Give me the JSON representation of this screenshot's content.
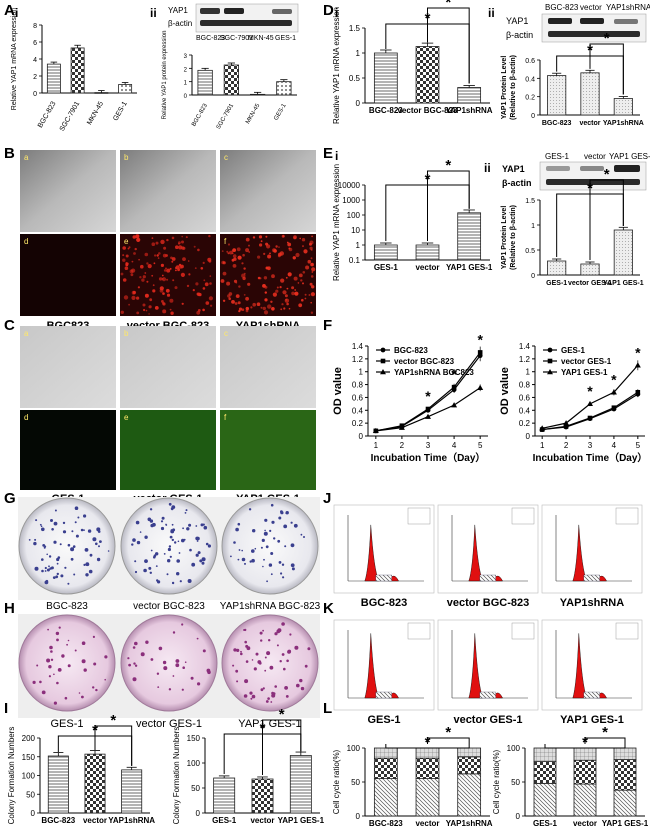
{
  "figure": {
    "panel_labels": [
      "A",
      "B",
      "C",
      "D",
      "E",
      "F",
      "G",
      "H",
      "I",
      "J",
      "K",
      "L"
    ],
    "sub_labels": {
      "i": "i",
      "ii": "ii"
    },
    "significance_mark": "*"
  },
  "western_blots": {
    "A_ii": {
      "bands": [
        "YAP1",
        "β-actin"
      ],
      "lanes": [
        "BGC-823",
        "SGC-7901",
        "MKN-45",
        "GES-1"
      ]
    },
    "D_ii": {
      "bands": [
        "YAP1",
        "β-actin"
      ],
      "lanes": [
        "BGC-823",
        "vector",
        "YAP1shRNA"
      ]
    },
    "E_ii": {
      "bands": [
        "YAP1",
        "β-actin"
      ],
      "lanes": [
        "GES-1",
        "vector",
        "YAP1 GES-1"
      ]
    }
  },
  "photo_panels": {
    "B": {
      "tiles": [
        "a",
        "b",
        "c",
        "d",
        "e",
        "f"
      ],
      "captions": [
        "BGC823",
        "vector BGC-823",
        "YAP1shRNA"
      ]
    },
    "C": {
      "tiles": [
        "a",
        "b",
        "c",
        "d",
        "e",
        "f"
      ],
      "captions": [
        "GES-1",
        "vector GES-1",
        "YAP1 GES-1"
      ]
    },
    "G": {
      "captions": [
        "BGC-823",
        "vector BGC-823",
        "YAP1shRNA BGC-823"
      ]
    },
    "H": {
      "captions": [
        "GES-1",
        "vector GES-1",
        "YAP1 GES-1"
      ]
    },
    "J": {
      "captions": [
        "BGC-823",
        "vector BGC-823",
        "YAP1shRNA"
      ]
    },
    "K": {
      "captions": [
        "GES-1",
        "vector GES-1",
        "YAP1 GES-1"
      ]
    }
  },
  "chart_data": [
    {
      "id": "A_i",
      "type": "bar",
      "categories": [
        "BGC-823",
        "SGC-7901",
        "MKN-45",
        "GES-1"
      ],
      "values": [
        3.4,
        5.3,
        0.05,
        1.0
      ],
      "ylabel": "Relative YAP1 mRNA expression",
      "ylim": [
        0,
        8
      ],
      "yticks": [
        0,
        2,
        4,
        6,
        8
      ]
    },
    {
      "id": "A_ii",
      "type": "bar",
      "categories": [
        "BGC-823",
        "SGC-7901",
        "MKN-45",
        "GES-1"
      ],
      "values": [
        1.85,
        2.25,
        0.05,
        1.0
      ],
      "ylabel": "Relative YAP1 protein expression",
      "ylim": [
        0,
        3
      ],
      "yticks": [
        0,
        1,
        2,
        3
      ]
    },
    {
      "id": "D_i",
      "type": "bar",
      "categories": [
        "BGC-823",
        "vector BGC-823",
        "YAP1shRNA"
      ],
      "values": [
        1.0,
        1.13,
        0.31
      ],
      "ylabel": "Relative YAP1 mRNA expression",
      "ylim": [
        0,
        1.5
      ],
      "yticks": [
        0.0,
        0.5,
        1.0,
        1.5
      ]
    },
    {
      "id": "D_ii",
      "type": "bar",
      "categories": [
        "BGC-823",
        "vector",
        "YAP1shRNA"
      ],
      "values": [
        0.43,
        0.46,
        0.18
      ],
      "ylabel": "YAP1 Protein Level (Relative to β-actin)",
      "ylim": [
        0,
        0.6
      ],
      "yticks": [
        0.0,
        0.2,
        0.4,
        0.6
      ]
    },
    {
      "id": "E_i",
      "type": "bar",
      "scale": "log",
      "categories": [
        "GES-1",
        "vector",
        "YAP1 GES-1"
      ],
      "values": [
        1.0,
        1.0,
        140
      ],
      "ylabel": "Relative YAP1 mRNA expression",
      "ylim": [
        0.1,
        10000
      ],
      "yticks": [
        "0.1",
        "1",
        "10",
        "100",
        "1000",
        "10000"
      ]
    },
    {
      "id": "E_ii",
      "type": "bar",
      "categories": [
        "GES-1",
        "vector GES-1",
        "YAP1 GES-1"
      ],
      "values": [
        0.28,
        0.22,
        0.9
      ],
      "ylabel": "YAP1 Protein Level (Relative to β-actin)",
      "ylim": [
        0,
        1.5
      ],
      "yticks": [
        0.0,
        0.5,
        1.0,
        1.5
      ]
    },
    {
      "id": "F_left",
      "type": "line",
      "x": [
        1,
        2,
        3,
        4,
        5
      ],
      "xlabel": "Incubation Time（Day）",
      "ylabel": "OD value",
      "ylim": [
        0,
        1.4
      ],
      "yticks": [
        0,
        0.2,
        0.4,
        0.6,
        0.8,
        1.0,
        1.2,
        1.4
      ],
      "series": [
        {
          "name": "BGC-823",
          "values": [
            0.08,
            0.15,
            0.4,
            0.72,
            1.25
          ]
        },
        {
          "name": "vector BGC-823",
          "values": [
            0.08,
            0.16,
            0.42,
            0.76,
            1.3
          ]
        },
        {
          "name": "YAP1shRNA BGC823",
          "values": [
            0.08,
            0.13,
            0.3,
            0.48,
            0.75
          ]
        }
      ]
    },
    {
      "id": "F_right",
      "type": "line",
      "x": [
        1,
        2,
        3,
        4,
        5
      ],
      "xlabel": "Incubation Time（Day）",
      "ylabel": "OD value",
      "ylim": [
        0,
        1.4
      ],
      "yticks": [
        0,
        0.2,
        0.4,
        0.6,
        0.8,
        1.0,
        1.2,
        1.4
      ],
      "series": [
        {
          "name": "GES-1",
          "values": [
            0.1,
            0.14,
            0.27,
            0.42,
            0.65
          ]
        },
        {
          "name": "vector GES-1",
          "values": [
            0.1,
            0.15,
            0.28,
            0.44,
            0.68
          ]
        },
        {
          "name": "YAP1 GES-1",
          "values": [
            0.12,
            0.2,
            0.5,
            0.68,
            1.1
          ]
        }
      ]
    },
    {
      "id": "I_left",
      "type": "bar",
      "categories": [
        "BGC-823",
        "vector",
        "YAP1shRNA"
      ],
      "values": [
        152,
        157,
        115
      ],
      "ylabel": "Colony Formation Numbers",
      "ylim": [
        0,
        200
      ],
      "yticks": [
        0,
        50,
        100,
        150,
        200
      ]
    },
    {
      "id": "I_right",
      "type": "bar",
      "categories": [
        "GES-1",
        "vector",
        "YAP1 GES-1"
      ],
      "values": [
        70,
        68,
        115
      ],
      "ylabel": "Colony Formation Numbers",
      "ylim": [
        0,
        150
      ],
      "yticks": [
        0,
        50,
        100,
        150
      ]
    },
    {
      "id": "L_left",
      "type": "bar",
      "stacked": true,
      "categories": [
        "BGC-823",
        "vector",
        "YAP1shRNA"
      ],
      "ylabel": "Cell cycle ratio(%)",
      "ylim": [
        0,
        100
      ],
      "yticks": [
        0,
        50,
        100
      ],
      "series": [
        {
          "values": [
            55,
            55,
            62
          ]
        },
        {
          "values": [
            30,
            30,
            25
          ]
        },
        {
          "values": [
            15,
            15,
            13
          ]
        }
      ]
    },
    {
      "id": "L_right",
      "type": "bar",
      "stacked": true,
      "categories": [
        "GES-1",
        "vector",
        "YAP1 GES-1"
      ],
      "ylabel": "Cell cycle ratio(%)",
      "ylim": [
        0,
        100
      ],
      "yticks": [
        0,
        50,
        100
      ],
      "series": [
        {
          "values": [
            48,
            47,
            38
          ]
        },
        {
          "values": [
            32,
            35,
            45
          ]
        },
        {
          "values": [
            20,
            18,
            17
          ]
        }
      ]
    }
  ]
}
